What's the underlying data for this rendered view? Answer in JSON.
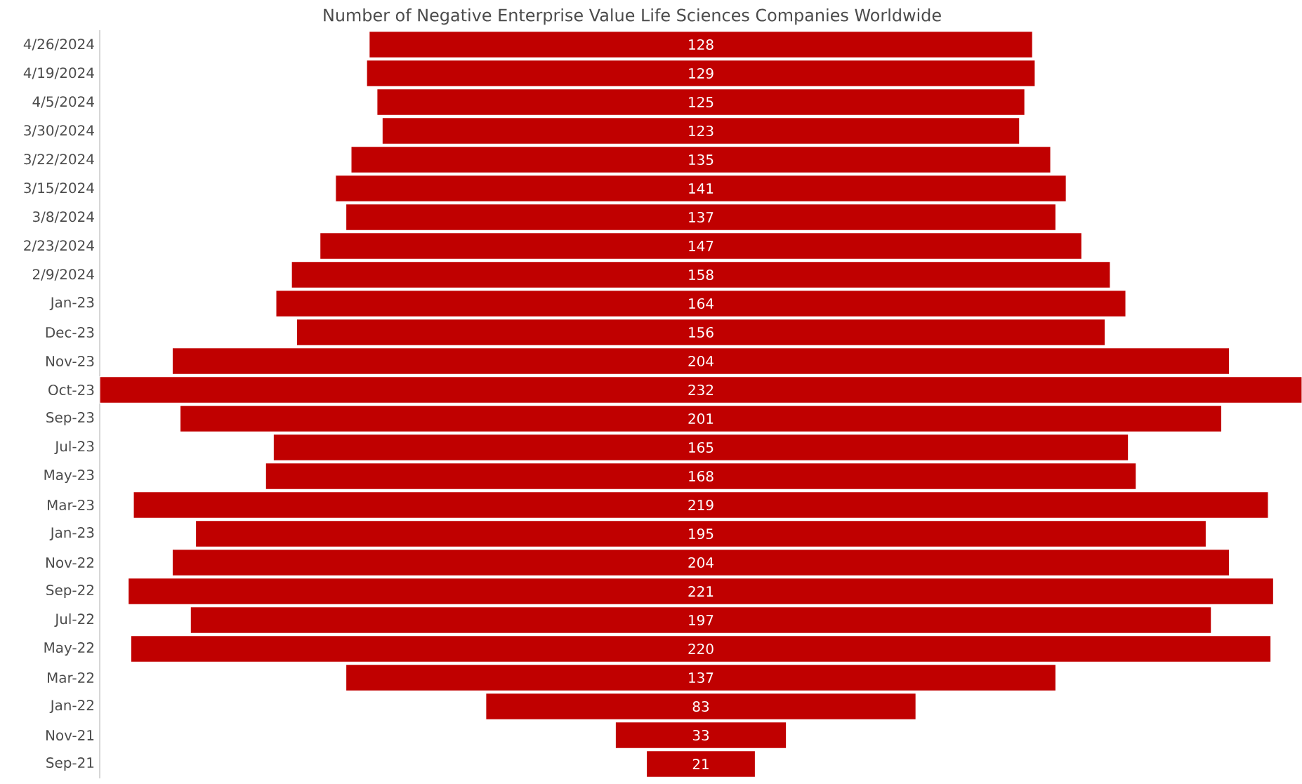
{
  "chart_data": {
    "type": "other",
    "title": "Number of Negative Enterprise Value Life Sciences Companies Worldwide",
    "categories": [
      "4/26/2024",
      "4/19/2024",
      "4/5/2024",
      "3/30/2024",
      "3/22/2024",
      "3/15/2024",
      "3/8/2024",
      "2/23/2024",
      "2/9/2024",
      "Jan-23",
      "Dec-23",
      "Nov-23",
      "Oct-23",
      "Sep-23",
      "Jul-23",
      "May-23",
      "Mar-23",
      "Jan-23",
      "Nov-22",
      "Sep-22",
      "Jul-22",
      "May-22",
      "Mar-22",
      "Jan-22",
      "Nov-21",
      "Sep-21"
    ],
    "values": [
      128,
      129,
      125,
      123,
      135,
      141,
      137,
      147,
      158,
      164,
      156,
      204,
      232,
      201,
      165,
      168,
      219,
      195,
      204,
      221,
      197,
      220,
      137,
      83,
      33,
      21
    ],
    "color": "#c00000",
    "data_labels": true
  }
}
